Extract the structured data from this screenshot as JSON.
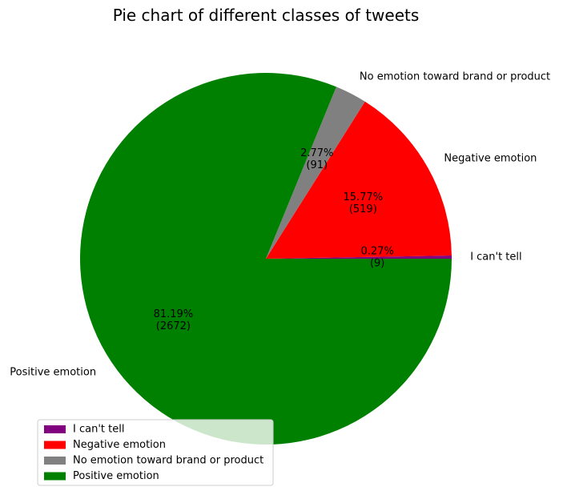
{
  "chart_data": {
    "type": "pie",
    "title": "Pie chart of different classes of tweets",
    "categories": [
      "I can't tell",
      "Negative emotion",
      "No emotion toward brand or product",
      "Positive emotion"
    ],
    "values": [
      9,
      519,
      91,
      2672
    ],
    "percent_labels": [
      "0.27%",
      "15.77%",
      "2.77%",
      "81.19%"
    ],
    "count_labels": [
      "(9)",
      "(519)",
      "(91)",
      "(2672)"
    ],
    "colors": [
      "#800080",
      "#ff0000",
      "#808080",
      "#008000"
    ],
    "start_angle_deg": 0,
    "direction": "counterclockwise",
    "legend": {
      "position": "lower-left",
      "entries": [
        "I can't tell",
        "Negative emotion",
        "No emotion toward brand or product",
        "Positive emotion"
      ]
    }
  }
}
